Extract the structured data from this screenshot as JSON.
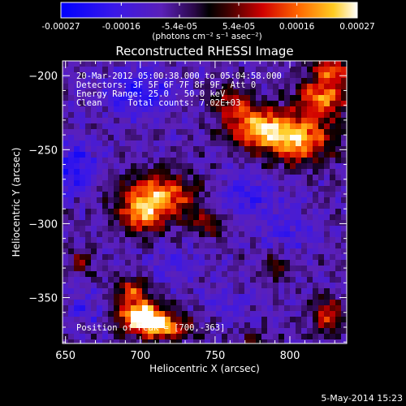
{
  "chart_data": {
    "type": "heatmap",
    "title": "Reconstructed RHESSI Image",
    "xlabel": "Heliocentric X (arcsec)",
    "ylabel": "Heliocentric Y (arcsec)",
    "xlim": [
      648,
      838
    ],
    "ylim": [
      -381,
      -190
    ],
    "xticks": [
      650,
      700,
      750,
      800
    ],
    "yticks": [
      -200,
      -250,
      -300,
      -350
    ],
    "colorbar": {
      "ticks": [
        {
          "value": -0.00027,
          "label": "-0.00027"
        },
        {
          "value": -0.00016,
          "label": "-0.00016"
        },
        {
          "value": -5.4e-05,
          "label": "-5.4e-05"
        },
        {
          "value": 5.4e-05,
          "label": "5.4e-05"
        },
        {
          "value": 0.00016,
          "label": "0.00016"
        },
        {
          "value": 0.00027,
          "label": "0.00027"
        }
      ],
      "range": [
        -0.00027,
        0.00027
      ],
      "units": "(photons cm⁻² s⁻¹ asec⁻²)"
    },
    "annotations": [
      "20-Mar-2012 05:00:38.000 to 05:04:58.000",
      "Detectors: 3F 5F 6F 7F 8F 9F, Att 0",
      "Energy Range: 25.0 - 50.0 keV",
      "Clean     Total counts: 7.02E+03"
    ],
    "peak_label": "Position of Peak = [700,-363]",
    "peak": {
      "x": 700,
      "y": -363
    },
    "bright_regions": [
      {
        "x": 700,
        "y": -362,
        "sx": 11,
        "sy": 7,
        "amp": 1.0
      },
      {
        "x": 715,
        "y": -370,
        "sx": 12,
        "sy": 6,
        "amp": 0.75
      },
      {
        "x": 695,
        "y": -345,
        "sx": 8,
        "sy": 6,
        "amp": 0.55
      },
      {
        "x": 712,
        "y": -282,
        "sx": 17,
        "sy": 11,
        "amp": 0.82
      },
      {
        "x": 700,
        "y": -296,
        "sx": 9,
        "sy": 8,
        "amp": 0.5
      },
      {
        "x": 745,
        "y": -300,
        "sx": 9,
        "sy": 6,
        "amp": 0.4
      },
      {
        "x": 778,
        "y": -235,
        "sx": 14,
        "sy": 10,
        "amp": 0.75
      },
      {
        "x": 805,
        "y": -243,
        "sx": 16,
        "sy": 11,
        "amp": 0.82
      },
      {
        "x": 822,
        "y": -215,
        "sx": 12,
        "sy": 9,
        "amp": 0.72
      },
      {
        "x": 828,
        "y": -196,
        "sx": 9,
        "sy": 6,
        "amp": 0.6
      },
      {
        "x": 760,
        "y": -218,
        "sx": 9,
        "sy": 7,
        "amp": 0.45
      },
      {
        "x": 825,
        "y": -362,
        "sx": 7,
        "sy": 8,
        "amp": 0.55
      },
      {
        "x": 790,
        "y": -330,
        "sx": 6,
        "sy": 6,
        "amp": 0.35
      },
      {
        "x": 660,
        "y": -326,
        "sx": 6,
        "sy": 6,
        "amp": 0.35
      },
      {
        "x": 775,
        "y": -378,
        "sx": 6,
        "sy": 5,
        "amp": 0.3
      }
    ],
    "dim_regions": [
      {
        "x": 655,
        "y": -262,
        "sx": 12,
        "sy": 11,
        "amp": 0.9
      },
      {
        "x": 700,
        "y": -212,
        "sx": 18,
        "sy": 11,
        "amp": 0.7
      },
      {
        "x": 770,
        "y": -280,
        "sx": 15,
        "sy": 12,
        "amp": 0.6
      },
      {
        "x": 800,
        "y": -305,
        "sx": 13,
        "sy": 10,
        "amp": 0.5
      },
      {
        "x": 720,
        "y": -330,
        "sx": 12,
        "sy": 8,
        "amp": 0.45
      },
      {
        "x": 665,
        "y": -358,
        "sx": 10,
        "sy": 8,
        "amp": 0.5
      },
      {
        "x": 760,
        "y": -355,
        "sx": 10,
        "sy": 8,
        "amp": 0.45
      }
    ]
  },
  "footer": {
    "timestamp": "5-May-2014 15:23"
  }
}
